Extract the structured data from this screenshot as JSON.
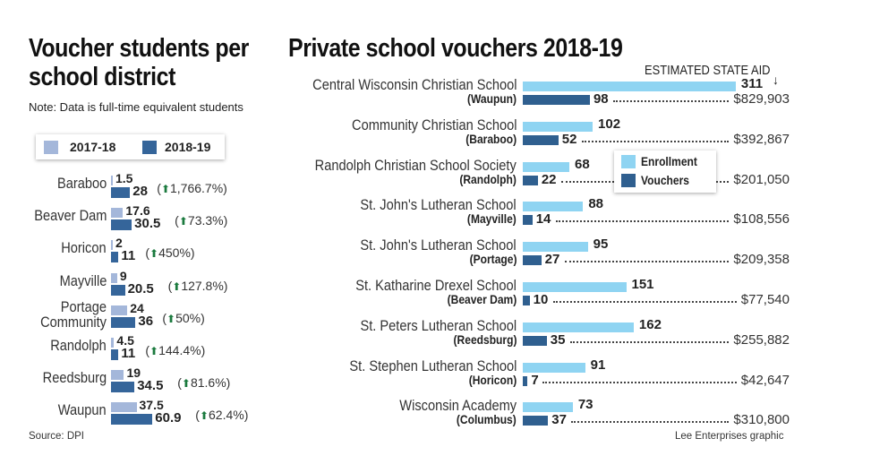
{
  "colors": {
    "left_2017": "#a4b7da",
    "left_2018": "#35659a",
    "enrollment": "#8fd4f2",
    "vouchers": "#2f5f8f",
    "increase_arrow": "#1b7a3e"
  },
  "chart_data": [
    {
      "type": "bar",
      "orientation": "horizontal",
      "title": "Voucher students per school district",
      "note": "Note: Data is full-time equivalent students",
      "source": "Source: DPI",
      "legend": {
        "placement": "top",
        "entries": [
          "2017-18",
          "2018-19"
        ]
      },
      "categories": [
        "Baraboo",
        "Beaver Dam",
        "Horicon",
        "Mayville",
        "Portage Community",
        "Randolph",
        "Reedsburg",
        "Waupun"
      ],
      "series": [
        {
          "name": "2017-18",
          "values": [
            1.5,
            17.6,
            2,
            9,
            24,
            4.5,
            19,
            37.5
          ],
          "labels": [
            "1.5",
            "17.6",
            "2",
            "9",
            "24",
            "4.5",
            "19",
            "37.5"
          ]
        },
        {
          "name": "2018-19",
          "values": [
            28,
            30.5,
            11,
            20.5,
            36,
            11,
            34.5,
            60.9
          ],
          "labels": [
            "28",
            "30.5",
            "11",
            "20.5",
            "36",
            "11",
            "34.5",
            "60.9"
          ]
        }
      ],
      "change_labels": [
        "1,766.7%",
        "73.3%",
        "450%",
        "127.8%",
        "50%",
        "144.4%",
        "81.6%",
        "62.4%"
      ],
      "change_icon": "up-arrow-icon"
    },
    {
      "type": "bar",
      "orientation": "horizontal",
      "title": "Private school vouchers 2018-19",
      "aid_header": "ESTIMATED STATE AID",
      "credit": "Lee Enterprises graphic",
      "legend": {
        "placement": "center",
        "entries": [
          "Enrollment",
          "Vouchers"
        ]
      },
      "schools": [
        {
          "name": "Central Wisconsin Christian School",
          "city": "(Waupun)",
          "enrollment": 311,
          "vouchers": 98,
          "aid": "$829,903"
        },
        {
          "name": "Community Christian School",
          "city": "(Baraboo)",
          "enrollment": 102,
          "vouchers": 52,
          "aid": "$392,867"
        },
        {
          "name": "Randolph Christian School Society",
          "city": "(Randolph)",
          "enrollment": 68,
          "vouchers": 22,
          "aid": "$201,050"
        },
        {
          "name": "St. John's Lutheran School",
          "city": "(Mayville)",
          "enrollment": 88,
          "vouchers": 14,
          "aid": "$108,556"
        },
        {
          "name": "St. John's Lutheran School",
          "city": "(Portage)",
          "enrollment": 95,
          "vouchers": 27,
          "aid": "$209,358"
        },
        {
          "name": "St. Katharine Drexel School",
          "city": "(Beaver Dam)",
          "enrollment": 151,
          "vouchers": 10,
          "aid": "$77,540"
        },
        {
          "name": "St. Peters Lutheran School",
          "city": "(Reedsburg)",
          "enrollment": 162,
          "vouchers": 35,
          "aid": "$255,882"
        },
        {
          "name": "St. Stephen Lutheran School",
          "city": "(Horicon)",
          "enrollment": 91,
          "vouchers": 7,
          "aid": "$42,647"
        },
        {
          "name": "Wisconsin Academy",
          "city": "(Columbus)",
          "enrollment": 73,
          "vouchers": 37,
          "aid": "$310,800"
        }
      ]
    }
  ]
}
